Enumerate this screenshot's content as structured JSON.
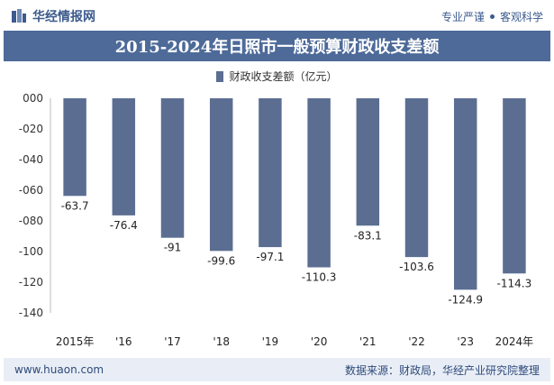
{
  "header": {
    "brand": "华经情报网",
    "tag1": "专业严谨",
    "tag2": "客观科学"
  },
  "title": "2015-2024年日照市一般预算财政收支差额",
  "colors": {
    "bar": "#5b6e92",
    "title_bg": "#4d6a99",
    "accent": "#3c5a8c"
  },
  "chart_data": {
    "type": "bar",
    "title": "2015-2024年日照市一般预算财政收支差额",
    "categories": [
      "2015年",
      "'16",
      "'17",
      "'18",
      "'19",
      "'20",
      "'21",
      "'22",
      "'23",
      "2024年"
    ],
    "series": [
      {
        "name": "财政收支差额（亿元）",
        "values": [
          -63.7,
          -76.4,
          -91,
          -99.6,
          -97.1,
          -110.3,
          -83.1,
          -103.6,
          -124.9,
          -114.3
        ]
      }
    ],
    "value_labels": [
      "-63.7",
      "-76.4",
      "-91",
      "-99.6",
      "-97.1",
      "-110.3",
      "-83.1",
      "-103.6",
      "-124.9",
      "-114.3"
    ],
    "y_ticks": [
      "000",
      "-020",
      "-040",
      "-060",
      "-080",
      "-100",
      "-120",
      "-140"
    ],
    "ylim": [
      -140,
      0
    ],
    "legend_position": "top-center"
  },
  "footer": {
    "url": "www.huaon.com",
    "source": "数据来源：财政局，华经产业研究院整理"
  }
}
